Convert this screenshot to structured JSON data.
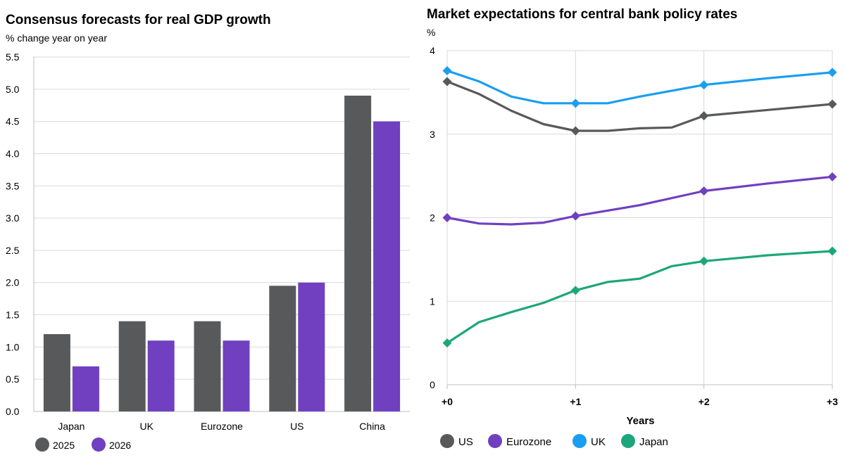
{
  "left": {
    "title": "Consensus forecasts for real GDP growth",
    "subtitle": "% change year on year"
  },
  "right": {
    "title": "Market expectations for central bank policy rates",
    "unit": "%"
  },
  "chart_data": [
    {
      "type": "bar",
      "title": "Consensus forecasts for real GDP growth",
      "ylabel": "% change year on year",
      "xlabel": "",
      "categories": [
        "Japan",
        "UK",
        "Eurozone",
        "US",
        "China"
      ],
      "series": [
        {
          "name": "2025",
          "color": "#58595b",
          "values": [
            1.2,
            1.4,
            1.4,
            1.95,
            4.9
          ]
        },
        {
          "name": "2026",
          "color": "#7040c0",
          "values": [
            0.7,
            1.1,
            1.1,
            2.0,
            4.5
          ]
        }
      ],
      "ylim": [
        0,
        5.5
      ],
      "yticks": [
        "0.0",
        "0.5",
        "1.0",
        "1.5",
        "2.0",
        "2.5",
        "3.0",
        "3.5",
        "4.0",
        "4.5",
        "5.0",
        "5.5"
      ],
      "grid": true,
      "legend": "bottom-left"
    },
    {
      "type": "line",
      "title": "Market expectations for central bank policy rates",
      "ylabel": "%",
      "xlabel": "Years",
      "xlim": [
        0,
        3
      ],
      "xticks": [
        0,
        1,
        2,
        3
      ],
      "xtick_labels": [
        "+0",
        "+1",
        "+2",
        "+3"
      ],
      "ylim": [
        0,
        4
      ],
      "yticks": [
        0,
        1,
        2,
        3,
        4
      ],
      "grid": true,
      "legend": "bottom-left",
      "series": [
        {
          "name": "US",
          "color": "#58595b",
          "x": [
            0,
            0.25,
            0.5,
            0.75,
            1,
            1.25,
            1.5,
            1.75,
            2,
            2.5,
            3
          ],
          "y": [
            3.63,
            3.48,
            3.28,
            3.12,
            3.04,
            3.04,
            3.07,
            3.08,
            3.22,
            3.29,
            3.36
          ],
          "markers": [
            0,
            4,
            8,
            10
          ]
        },
        {
          "name": "Eurozone",
          "color": "#7040c0",
          "x": [
            0,
            0.25,
            0.5,
            0.75,
            1,
            1.5,
            2,
            2.5,
            3
          ],
          "y": [
            2.0,
            1.93,
            1.92,
            1.94,
            2.02,
            2.15,
            2.32,
            2.41,
            2.49
          ],
          "markers": [
            0,
            4,
            6,
            8
          ]
        },
        {
          "name": "UK",
          "color": "#1a9ef0",
          "x": [
            0,
            0.25,
            0.5,
            0.75,
            1,
            1.25,
            1.5,
            2,
            2.5,
            3
          ],
          "y": [
            3.76,
            3.63,
            3.45,
            3.37,
            3.37,
            3.37,
            3.45,
            3.59,
            3.67,
            3.74
          ],
          "markers": [
            0,
            4,
            7,
            9
          ]
        },
        {
          "name": "Japan",
          "color": "#1da67a",
          "x": [
            0,
            0.25,
            0.5,
            0.75,
            1,
            1.25,
            1.5,
            1.75,
            2,
            2.5,
            3
          ],
          "y": [
            0.5,
            0.75,
            0.87,
            0.98,
            1.13,
            1.23,
            1.27,
            1.42,
            1.48,
            1.55,
            1.6
          ],
          "markers": [
            0,
            4,
            8,
            10
          ]
        }
      ]
    }
  ]
}
